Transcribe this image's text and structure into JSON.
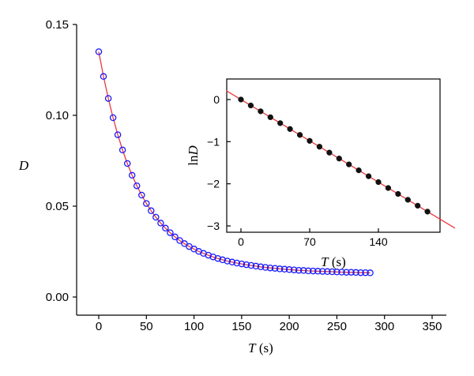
{
  "chart_data": [
    {
      "type": "scatter",
      "title": "",
      "xlabel": {
        "symbol": "T",
        "unit": " (s)"
      },
      "ylabel": {
        "symbol": "D"
      },
      "xlim": [
        -20,
        360
      ],
      "ylim": [
        -0.01,
        0.15
      ],
      "xticks": [
        "0",
        "50",
        "100",
        "150",
        "200",
        "250",
        "300",
        "350"
      ],
      "xtick_values": [
        0,
        50,
        100,
        150,
        200,
        250,
        300,
        350
      ],
      "yticks": [
        "0.00",
        "0.05",
        "0.10",
        "0.15"
      ],
      "ytick_values": [
        0.0,
        0.05,
        0.1,
        0.15
      ],
      "grid": false,
      "series": [
        {
          "marker": "open-circle",
          "color": "#1a1aff",
          "x": [
            0,
            5,
            10,
            15,
            20,
            25,
            30,
            35,
            40,
            45,
            50,
            55,
            60,
            65,
            70,
            75,
            80,
            85,
            90,
            95,
            100,
            105,
            110,
            115,
            120,
            125,
            130,
            135,
            140,
            145,
            150,
            155,
            160,
            165,
            170,
            175,
            180,
            185,
            190,
            195,
            200,
            205,
            210,
            215,
            220,
            225,
            230,
            235,
            240,
            245,
            250,
            255,
            260,
            265,
            270,
            275,
            280,
            285
          ],
          "y": [
            0.135,
            0.1214,
            0.1093,
            0.0987,
            0.0893,
            0.0809,
            0.0735,
            0.067,
            0.0612,
            0.0561,
            0.0515,
            0.0475,
            0.0439,
            0.0407,
            0.0379,
            0.0354,
            0.0331,
            0.0311,
            0.0294,
            0.0278,
            0.0264,
            0.0251,
            0.024,
            0.023,
            0.0221,
            0.0212,
            0.0205,
            0.0198,
            0.0192,
            0.0187,
            0.0182,
            0.0178,
            0.0174,
            0.017,
            0.0166,
            0.0163,
            0.016,
            0.0158,
            0.0155,
            0.0153,
            0.0151,
            0.0149,
            0.0147,
            0.0146,
            0.0144,
            0.0143,
            0.0142,
            0.0141,
            0.014,
            0.0139,
            0.0138,
            0.0137,
            0.0136,
            0.0136,
            0.0135,
            0.0134,
            0.0134,
            0.0133
          ]
        },
        {
          "type": "line",
          "color": "#e8383d",
          "x": [
            0,
            5,
            10,
            15,
            20,
            25,
            30,
            35,
            40,
            45,
            50,
            55,
            60,
            65,
            70,
            75,
            80,
            85,
            90,
            95,
            100,
            105,
            110,
            115,
            120,
            125,
            130,
            135,
            140,
            145,
            150,
            155,
            160,
            165,
            170,
            175,
            180,
            185,
            190,
            195,
            200,
            205,
            210,
            215,
            220,
            225,
            230,
            235,
            240,
            245,
            250,
            255,
            260,
            265,
            270,
            275,
            280,
            285
          ],
          "y": [
            0.135,
            0.1214,
            0.1093,
            0.0987,
            0.0893,
            0.0809,
            0.0735,
            0.067,
            0.0612,
            0.0561,
            0.0515,
            0.0475,
            0.0439,
            0.0407,
            0.0379,
            0.0354,
            0.0331,
            0.0311,
            0.0294,
            0.0278,
            0.0264,
            0.0251,
            0.024,
            0.023,
            0.0221,
            0.0212,
            0.0205,
            0.0198,
            0.0192,
            0.0187,
            0.0182,
            0.0178,
            0.0174,
            0.017,
            0.0166,
            0.0163,
            0.016,
            0.0158,
            0.0155,
            0.0153,
            0.0151,
            0.0149,
            0.0147,
            0.0146,
            0.0144,
            0.0143,
            0.0142,
            0.0141,
            0.014,
            0.0139,
            0.0138,
            0.0137,
            0.0136,
            0.0136,
            0.0135,
            0.0134,
            0.0134,
            0.0133
          ]
        }
      ]
    },
    {
      "type": "scatter",
      "title": "",
      "xlabel": {
        "symbol": "T",
        "unit": " (s)"
      },
      "ylabel": {
        "prefix": "ln",
        "symbol": "D"
      },
      "xlim": [
        -15,
        220
      ],
      "ylim": [
        -3.1,
        0.45
      ],
      "xticks": [
        "0",
        "70",
        "140"
      ],
      "xtick_values": [
        0,
        70,
        140
      ],
      "yticks": [
        "0",
        "−1",
        "−2",
        "−3"
      ],
      "ytick_values": [
        0,
        -1,
        -2,
        -3
      ],
      "grid": false,
      "series": [
        {
          "marker": "filled-circle",
          "color": "#111111",
          "x": [
            0,
            10,
            20,
            30,
            40,
            50,
            60,
            70,
            80,
            90,
            100,
            110,
            120,
            130,
            140,
            150,
            160,
            170,
            180,
            190
          ],
          "y": [
            0.0,
            -0.14,
            -0.28,
            -0.42,
            -0.56,
            -0.7,
            -0.84,
            -0.98,
            -1.12,
            -1.26,
            -1.4,
            -1.54,
            -1.68,
            -1.82,
            -1.96,
            -2.1,
            -2.24,
            -2.38,
            -2.52,
            -2.66
          ]
        },
        {
          "type": "line",
          "color": "#e8383d",
          "x": [
            -15,
            218
          ],
          "y": [
            0.21,
            -3.052
          ]
        }
      ]
    }
  ]
}
